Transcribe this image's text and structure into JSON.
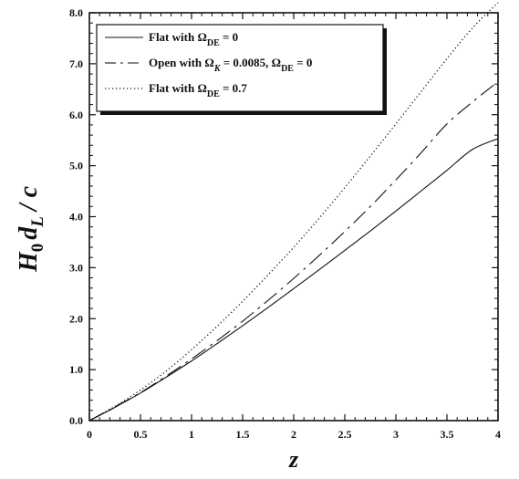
{
  "chart_data": {
    "type": "line",
    "xlabel": "z",
    "ylabel": "H0 dL / c",
    "xlim": [
      0,
      4
    ],
    "ylim": [
      0,
      8
    ],
    "grid": false,
    "legend_position": "top-left",
    "x_ticks": [
      "0",
      "0.5",
      "1",
      "1.5",
      "2",
      "2.5",
      "3",
      "3.5",
      "4"
    ],
    "y_ticks": [
      "0.0",
      "1.0",
      "2.0",
      "3.0",
      "4.0",
      "5.0",
      "6.0",
      "7.0",
      "8.0"
    ],
    "x": [
      0,
      0.25,
      0.5,
      0.75,
      1,
      1.25,
      1.5,
      1.75,
      2,
      2.25,
      2.5,
      2.75,
      3,
      3.25,
      3.5,
      3.75,
      4
    ],
    "series": [
      {
        "name": "Flat with ΩDE = 0",
        "legend_main": "Flat with Ω",
        "legend_sub": "DE",
        "legend_tail": " = 0",
        "style": "solid",
        "values": [
          0,
          0.26,
          0.54,
          0.85,
          1.17,
          1.51,
          1.86,
          2.22,
          2.59,
          2.96,
          3.34,
          3.72,
          4.11,
          4.51,
          4.91,
          5.32,
          5.53
        ]
      },
      {
        "name": "Open with ΩK = 0.0085, ΩDE = 0",
        "legend_main": "Open with Ω",
        "legend_sub": "K",
        "legend_mid": " = 0.0085, Ω",
        "legend_sub2": "DE",
        "legend_tail": " = 0",
        "style": "dashdot",
        "values": [
          0,
          0.27,
          0.55,
          0.87,
          1.21,
          1.57,
          1.95,
          2.36,
          2.79,
          3.24,
          3.71,
          4.2,
          4.72,
          5.26,
          5.82,
          6.25,
          6.65
        ]
      },
      {
        "name": "Flat with ΩDE = 0.7",
        "legend_main": "Flat with Ω",
        "legend_sub": "DE",
        "legend_tail": " = 0.7",
        "style": "dotted",
        "values": [
          0,
          0.28,
          0.6,
          0.97,
          1.39,
          1.85,
          2.34,
          2.86,
          3.4,
          3.97,
          4.57,
          5.19,
          5.82,
          6.46,
          7.1,
          7.7,
          8.2
        ]
      }
    ],
    "colors": {
      "lines": "#111111",
      "axis": "#111111"
    }
  }
}
